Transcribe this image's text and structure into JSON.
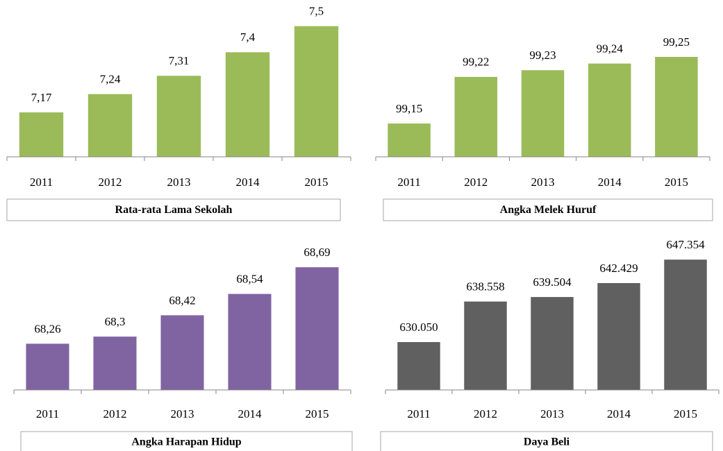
{
  "chart_data": [
    {
      "type": "bar",
      "title": "Rata-rata Lama Sekolah",
      "categories": [
        "2011",
        "2012",
        "2013",
        "2014",
        "2015"
      ],
      "values": [
        7.17,
        7.24,
        7.31,
        7.4,
        7.5
      ],
      "value_labels": [
        "7,17",
        "7,24",
        "7,31",
        "7,4",
        "7,5"
      ],
      "color": "#9bbb59",
      "ylim": [
        7.0,
        7.6
      ]
    },
    {
      "type": "bar",
      "title": "Angka Melek Huruf",
      "categories": [
        "2011",
        "2012",
        "2013",
        "2014",
        "2015"
      ],
      "values": [
        99.15,
        99.22,
        99.23,
        99.24,
        99.25
      ],
      "value_labels": [
        "99,15",
        "99,22",
        "99,23",
        "99,24",
        "99,25"
      ],
      "color": "#9bbb59",
      "ylim": [
        99.1,
        99.3
      ]
    },
    {
      "type": "bar",
      "title": "Angka Harapan Hidup",
      "categories": [
        "2011",
        "2012",
        "2013",
        "2014",
        "2015"
      ],
      "values": [
        68.26,
        68.3,
        68.42,
        68.54,
        68.69
      ],
      "value_labels": [
        "68,26",
        "68,3",
        "68,42",
        "68,54",
        "68,69"
      ],
      "color": "#8064a2",
      "ylim": [
        68.0,
        68.8
      ]
    },
    {
      "type": "bar",
      "title": "Daya Beli",
      "categories": [
        "2011",
        "2012",
        "2013",
        "2014",
        "2015"
      ],
      "values": [
        630050,
        638558,
        639504,
        642429,
        647354
      ],
      "value_labels": [
        "630.050",
        "638.558",
        "639.504",
        "642.429",
        "647.354"
      ],
      "color": "#606060",
      "ylim": [
        620000,
        650000
      ]
    }
  ]
}
